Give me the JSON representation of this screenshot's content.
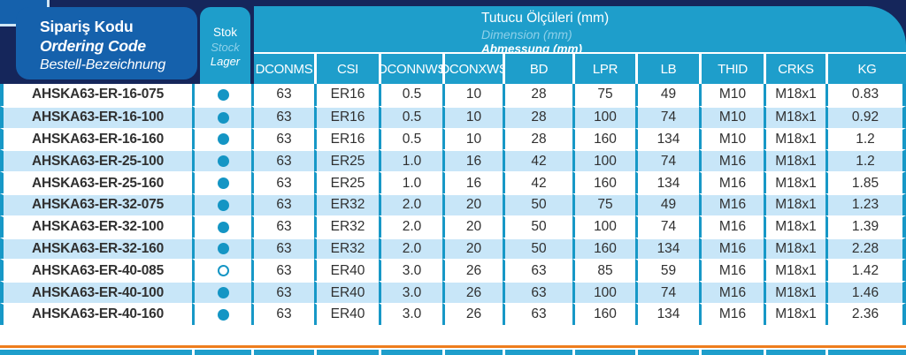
{
  "header": {
    "ordering_code_title": {
      "tr": "Sipariş Kodu",
      "en": "Ordering Code",
      "de": "Bestell-Bezeichnung"
    },
    "stock_title": {
      "tr": "Stok",
      "en": "Stock",
      "de": "Lager"
    },
    "dimensions_title": {
      "tr": "Tutucu Ölçüleri (mm)",
      "en": "Dimension (mm)",
      "de": "Abmessung (mm)"
    },
    "columns": [
      "DCONMS",
      "CSI",
      "DCONNWS",
      "DCONXWS",
      "BD",
      "LPR",
      "LB",
      "THID",
      "CRKS",
      "KG"
    ]
  },
  "stock_symbols": {
    "in_stock": "filled-circle",
    "on_request": "open-circle"
  },
  "colors": {
    "navy": "#15265B",
    "royal_blue": "#1561AC",
    "teal": "#1798C7",
    "teal_header": "#1E9ECB",
    "row_alt": "#C8E6F8",
    "orange_rule": "#EE7D1D",
    "light_italic_text": "#8ED0E9"
  },
  "rows": [
    {
      "code": "AHSKA63-ER-16-075",
      "stock": "in_stock",
      "values": [
        "63",
        "ER16",
        "0.5",
        "10",
        "28",
        "75",
        "49",
        "M10",
        "M18x1",
        "0.83"
      ]
    },
    {
      "code": "AHSKA63-ER-16-100",
      "stock": "in_stock",
      "values": [
        "63",
        "ER16",
        "0.5",
        "10",
        "28",
        "100",
        "74",
        "M10",
        "M18x1",
        "0.92"
      ]
    },
    {
      "code": "AHSKA63-ER-16-160",
      "stock": "in_stock",
      "values": [
        "63",
        "ER16",
        "0.5",
        "10",
        "28",
        "160",
        "134",
        "M10",
        "M18x1",
        "1.2"
      ]
    },
    {
      "code": "AHSKA63-ER-25-100",
      "stock": "in_stock",
      "values": [
        "63",
        "ER25",
        "1.0",
        "16",
        "42",
        "100",
        "74",
        "M16",
        "M18x1",
        "1.2"
      ]
    },
    {
      "code": "AHSKA63-ER-25-160",
      "stock": "in_stock",
      "values": [
        "63",
        "ER25",
        "1.0",
        "16",
        "42",
        "160",
        "134",
        "M16",
        "M18x1",
        "1.85"
      ]
    },
    {
      "code": "AHSKA63-ER-32-075",
      "stock": "in_stock",
      "values": [
        "63",
        "ER32",
        "2.0",
        "20",
        "50",
        "75",
        "49",
        "M16",
        "M18x1",
        "1.23"
      ]
    },
    {
      "code": "AHSKA63-ER-32-100",
      "stock": "in_stock",
      "values": [
        "63",
        "ER32",
        "2.0",
        "20",
        "50",
        "100",
        "74",
        "M16",
        "M18x1",
        "1.39"
      ]
    },
    {
      "code": "AHSKA63-ER-32-160",
      "stock": "in_stock",
      "values": [
        "63",
        "ER32",
        "2.0",
        "20",
        "50",
        "160",
        "134",
        "M16",
        "M18x1",
        "2.28"
      ]
    },
    {
      "code": "AHSKA63-ER-40-085",
      "stock": "on_request",
      "values": [
        "63",
        "ER40",
        "3.0",
        "26",
        "63",
        "85",
        "59",
        "M16",
        "M18x1",
        "1.42"
      ]
    },
    {
      "code": "AHSKA63-ER-40-100",
      "stock": "in_stock",
      "values": [
        "63",
        "ER40",
        "3.0",
        "26",
        "63",
        "100",
        "74",
        "M16",
        "M18x1",
        "1.46"
      ]
    },
    {
      "code": "AHSKA63-ER-40-160",
      "stock": "in_stock",
      "values": [
        "63",
        "ER40",
        "3.0",
        "26",
        "63",
        "160",
        "134",
        "M16",
        "M18x1",
        "2.36"
      ]
    }
  ]
}
